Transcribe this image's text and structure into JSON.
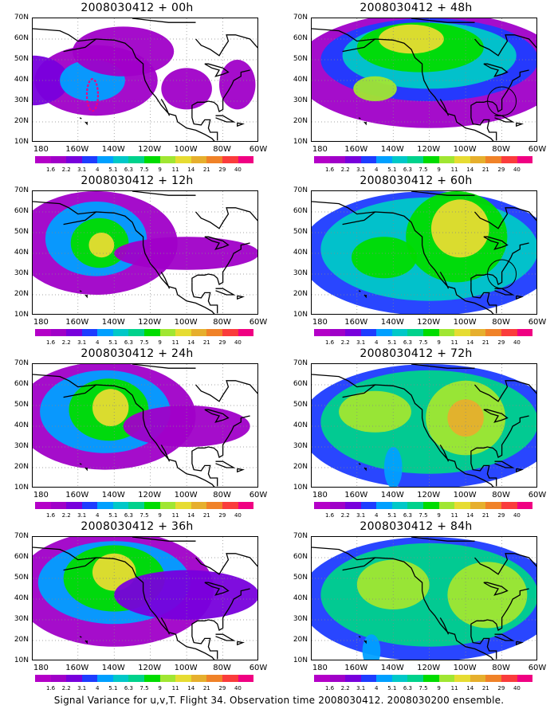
{
  "panels": [
    {
      "title": "2008030412 + 00h",
      "col": 0,
      "row": 0
    },
    {
      "title": "2008030412 + 48h",
      "col": 1,
      "row": 0
    },
    {
      "title": "2008030412 + 12h",
      "col": 0,
      "row": 1
    },
    {
      "title": "2008030412 + 60h",
      "col": 1,
      "row": 1
    },
    {
      "title": "2008030412 + 24h",
      "col": 0,
      "row": 2
    },
    {
      "title": "2008030412 + 72h",
      "col": 1,
      "row": 2
    },
    {
      "title": "2008030412 + 36h",
      "col": 0,
      "row": 3
    },
    {
      "title": "2008030412 + 84h",
      "col": 1,
      "row": 3
    }
  ],
  "lat_labels": [
    "70N",
    "60N",
    "50N",
    "40N",
    "30N",
    "20N",
    "10N"
  ],
  "lon_labels": [
    "180",
    "160W",
    "140W",
    "120W",
    "100W",
    "80W",
    "60W"
  ],
  "colorbar": {
    "labels": [
      "1.6",
      "2.2",
      "3.1",
      "4",
      "5.1",
      "6.3",
      "7.5",
      "9",
      "11",
      "14",
      "21",
      "29",
      "40"
    ],
    "colors": [
      "#a000c8",
      "#7800dc",
      "#1e3cff",
      "#00a0ff",
      "#00c8c8",
      "#00d28c",
      "#00dc00",
      "#a0e632",
      "#e6dc32",
      "#e6af2d",
      "#f08228",
      "#fa3c3c",
      "#f00082"
    ]
  },
  "caption": "Signal Variance for u,v,T. Flight 34. Observation time 2008030412. 2008030200 ensemble."
}
